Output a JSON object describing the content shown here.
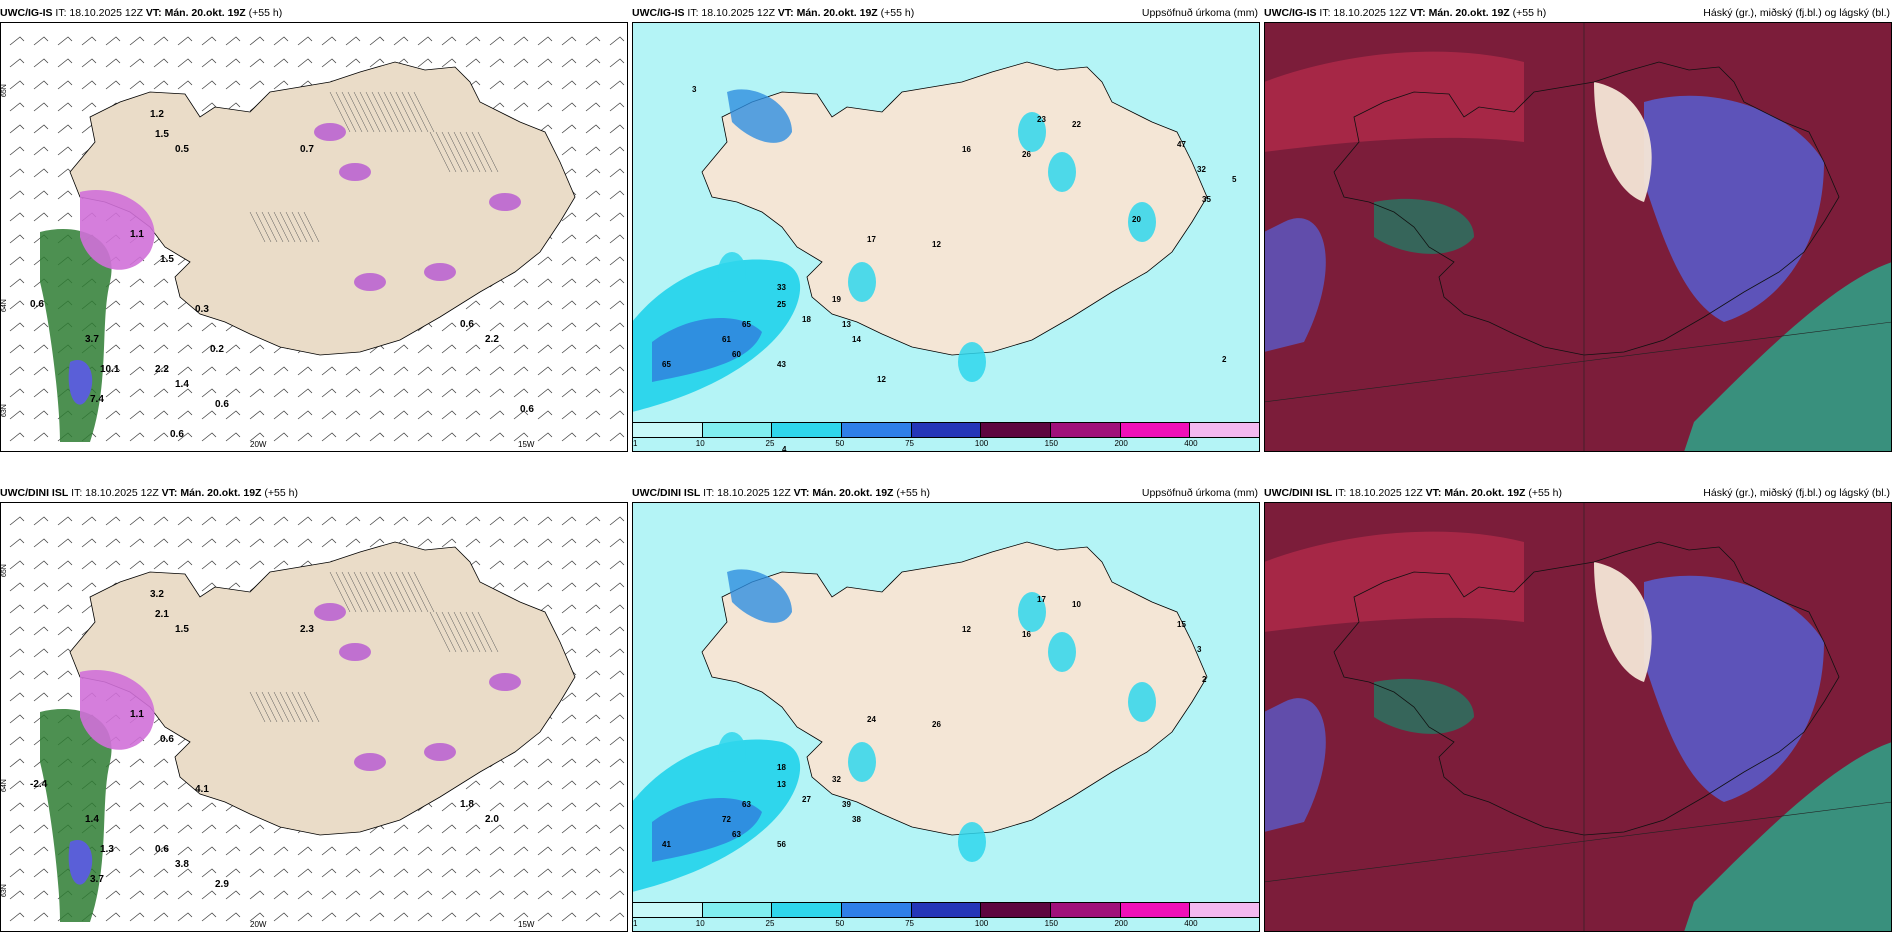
{
  "panels": [
    {
      "model": "UWC/IG-IS",
      "it": "IT: 18.10.2025 12Z",
      "vt": "VT: Mán. 20.okt. 19Z",
      "lead": "(+55 h)",
      "right_title": "",
      "kind": "temp",
      "header_cropped_suffix": "h)",
      "lon_labels": [
        "20W",
        "15W"
      ],
      "lat_labels": [
        "65N",
        "64N",
        "63N"
      ],
      "values": [
        "0.6",
        "1.2",
        "1.5",
        "0.5",
        "0.7",
        "0.6",
        "2.2",
        "1.1",
        "1.5",
        "3.7",
        "10.1",
        "7.4",
        "2.2",
        "1.4",
        "0.6",
        "0.3",
        "0.2",
        "0.6",
        "0.6"
      ]
    },
    {
      "model": "UWC/IG-IS",
      "it": "IT: 18.10.2025 12Z",
      "vt": "VT: Mán. 20.okt. 19Z",
      "lead": "(+55 h)",
      "right_title": "Uppsöfnuð úrkoma (mm)",
      "kind": "precip",
      "values": [
        "65",
        "61",
        "60",
        "65",
        "43",
        "33",
        "25",
        "18",
        "19",
        "13",
        "14",
        "17",
        "12",
        "16",
        "26",
        "23",
        "22",
        "47",
        "32",
        "35",
        "20",
        "12",
        "4",
        "3",
        "5",
        "2"
      ]
    },
    {
      "model": "UWC/IG-IS",
      "it": "IT: 18.10.2025 12Z",
      "vt": "VT: Mán. 20.okt. 19Z",
      "lead": "(+55 h)",
      "right_title": "Háský (gr.), miðský (fj.bl.) og lágský (bl.)",
      "kind": "cloud"
    },
    {
      "model": "UWC/DINI ISL",
      "it": "IT: 18.10.2025 12Z",
      "vt": "VT: Mán. 20.okt. 19Z",
      "lead": "(+55 h)",
      "right_title": "",
      "kind": "temp",
      "lon_labels": [
        "20W",
        "15W"
      ],
      "lat_labels": [
        "65N",
        "64N",
        "63N"
      ],
      "values": [
        "-2.4",
        "3.2",
        "2.1",
        "1.5",
        "2.3",
        "1.8",
        "2.0",
        "1.1",
        "0.6",
        "1.4",
        "1.3",
        "3.7",
        "0.6",
        "3.8",
        "2.9",
        "4.1"
      ]
    },
    {
      "model": "UWC/DINI ISL",
      "it": "IT: 18.10.2025 12Z",
      "vt": "VT: Mán. 20.okt. 19Z",
      "lead": "(+55 h)",
      "right_title": "Uppsöfnuð úrkoma (mm)",
      "kind": "precip",
      "values": [
        "63",
        "72",
        "63",
        "41",
        "56",
        "18",
        "13",
        "27",
        "32",
        "39",
        "38",
        "24",
        "26",
        "12",
        "16",
        "17",
        "10",
        "15",
        "3",
        "2"
      ]
    },
    {
      "model": "UWC/DINI ISL",
      "it": "IT: 18.10.2025 12Z",
      "vt": "VT: Mán. 20.okt. 19Z",
      "lead": "(+55 h)",
      "right_title": "Háský (gr.), miðský (fj.bl.) og lágský (bl.)",
      "kind": "cloud"
    }
  ],
  "colorbar": {
    "labels": [
      "1",
      "10",
      "25",
      "50",
      "75",
      "100",
      "150",
      "200",
      "400"
    ],
    "colors": [
      "#c8f8f8",
      "#80eef0",
      "#2fd6ec",
      "#2f7fe8",
      "#2536b8",
      "#5e0640",
      "#a0107a",
      "#ee10b8",
      "#f4b8f0"
    ]
  }
}
